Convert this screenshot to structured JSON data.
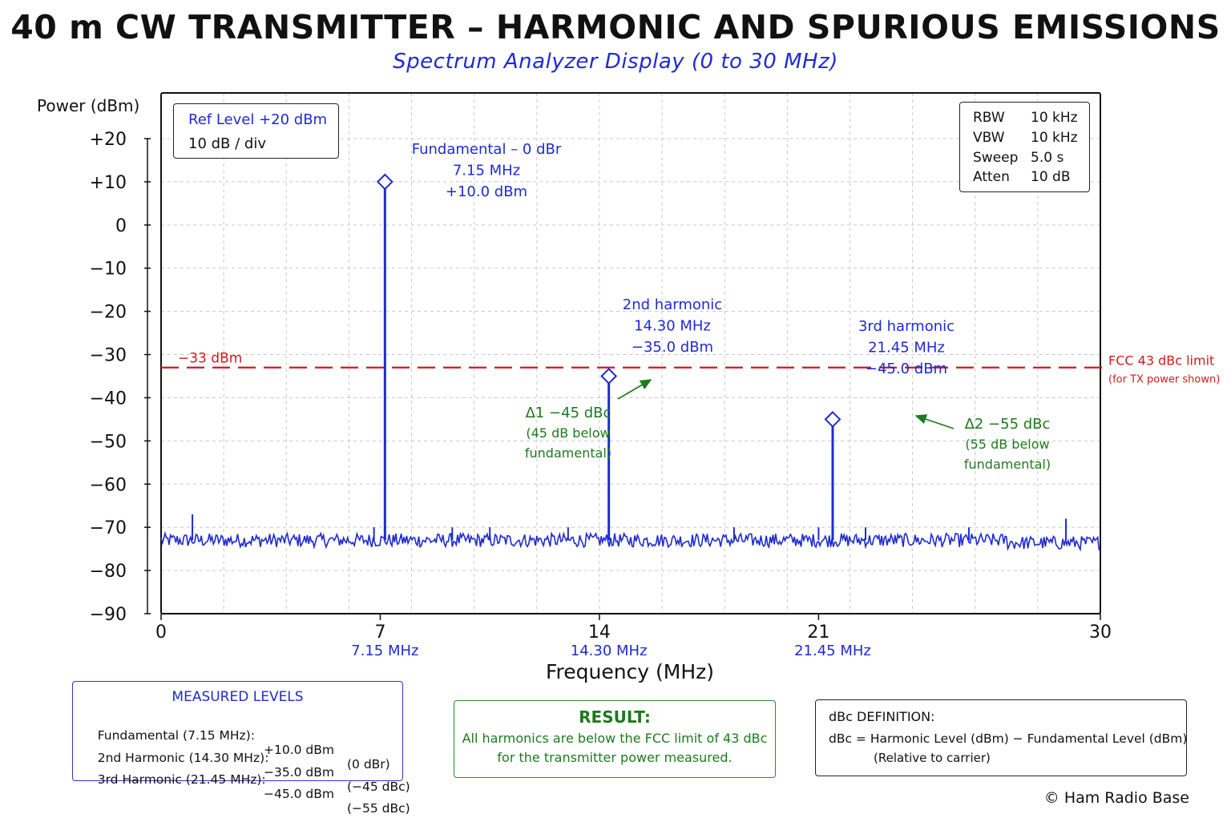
{
  "title": "40 m CW TRANSMITTER – HARMONIC AND SPURIOUS EMISSIONS",
  "subtitle": "Spectrum Analyzer Display (0 to 30 MHz)",
  "colors": {
    "trace": "#1f2bd1",
    "limit": "#d11a1a",
    "annotation": "#1d7a1d",
    "grid": "#c8c8c8"
  },
  "ref_box": {
    "ref_level": "Ref Level +20 dBm",
    "scale": "10 dB / div"
  },
  "settings_box": [
    {
      "label": "RBW",
      "value": "10 kHz"
    },
    {
      "label": "VBW",
      "value": "10 kHz"
    },
    {
      "label": "Sweep",
      "value": "5.0 s"
    },
    {
      "label": "Atten",
      "value": "10 dB"
    }
  ],
  "chart_data": {
    "type": "line",
    "title": "40 m CW TRANSMITTER – HARMONIC AND SPURIOUS EMISSIONS",
    "subtitle": "Spectrum Analyzer Display (0 to 30 MHz)",
    "xlabel": "Frequency (MHz)",
    "ylabel": "Power (dBm)",
    "xlim": [
      0,
      30
    ],
    "ylim": [
      -90,
      20
    ],
    "x_ticks": [
      0,
      7,
      14,
      21,
      30
    ],
    "x_tick_labels": [
      "0",
      "7",
      "14",
      "21",
      "30"
    ],
    "y_ticks": [
      20,
      10,
      0,
      -10,
      -20,
      -30,
      -40,
      -50,
      -60,
      -70,
      -80,
      -90
    ],
    "y_tick_labels": [
      "+20",
      "+10",
      "0",
      "−10",
      "−20",
      "−30",
      "−40",
      "−50",
      "−60",
      "−70",
      "−80",
      "−90"
    ],
    "x_marker_labels": [
      {
        "x": 7.15,
        "label": "7.15 MHz"
      },
      {
        "x": 14.3,
        "label": "14.30 MHz"
      },
      {
        "x": 21.45,
        "label": "21.45 MHz"
      }
    ],
    "grid": true,
    "noise_floor_dbm": -73,
    "series": [
      {
        "values": [
          {
            "x": 7.15,
            "y": 10.0
          },
          {
            "x": 14.3,
            "y": -35.0
          },
          {
            "x": 21.45,
            "y": -45.0
          }
        ]
      }
    ],
    "spurs": [
      {
        "x": 1.0,
        "y": -67
      },
      {
        "x": 6.8,
        "y": -70
      },
      {
        "x": 9.3,
        "y": -70
      },
      {
        "x": 10.5,
        "y": -70
      },
      {
        "x": 13.0,
        "y": -70
      },
      {
        "x": 18.3,
        "y": -70
      },
      {
        "x": 21.0,
        "y": -70
      },
      {
        "x": 22.5,
        "y": -70
      },
      {
        "x": 25.8,
        "y": -70
      },
      {
        "x": 28.9,
        "y": -68
      }
    ],
    "limit_line": {
      "y": -33,
      "label": "−33 dBm",
      "right_label": "FCC 43 dBc limit",
      "right_note": "(for TX power shown)"
    },
    "peak_labels": [
      {
        "x": 7.15,
        "y": 10.0,
        "lines": [
          "Fundamental – 0 dBr",
          "7.15 MHz",
          "+10.0 dBm"
        ]
      },
      {
        "x": 14.3,
        "y": -35.0,
        "lines": [
          "2nd harmonic",
          "14.30 MHz",
          "−35.0 dBm"
        ]
      },
      {
        "x": 21.45,
        "y": -45.0,
        "lines": [
          "3rd harmonic",
          "21.45 MHz",
          "−45.0 dBm"
        ]
      }
    ],
    "delta_annotations": [
      {
        "target_x": 14.3,
        "target_y": -35.0,
        "lines": [
          "Δ1 −45 dBc",
          "(45 dB below",
          "fundamental)"
        ]
      },
      {
        "target_x": 21.45,
        "target_y": -45.0,
        "lines": [
          "Δ2 −55 dBc",
          "(55 dB below",
          "fundamental)"
        ]
      }
    ]
  },
  "measured_levels": {
    "header": "MEASURED LEVELS",
    "rows": [
      {
        "name": "Fundamental (7.15 MHz):",
        "level": "+10.0 dBm",
        "rel": "(0 dBr)"
      },
      {
        "name": "2nd Harmonic (14.30 MHz):",
        "level": "−35.0 dBm",
        "rel": "(−45 dBc)"
      },
      {
        "name": "3rd Harmonic (21.45 MHz):",
        "level": "−45.0 dBm",
        "rel": "(−55 dBc)"
      }
    ]
  },
  "result": {
    "header": "RESULT:",
    "line1": "All harmonics are below the FCC limit of 43 dBc",
    "line2": "for the transmitter power measured."
  },
  "dbc_definition": {
    "header": "dBc DEFINITION:",
    "line1": "dBc = Harmonic Level (dBm) − Fundamental Level (dBm)",
    "line2": "(Relative to carrier)"
  },
  "copyright": "© Ham Radio Base"
}
